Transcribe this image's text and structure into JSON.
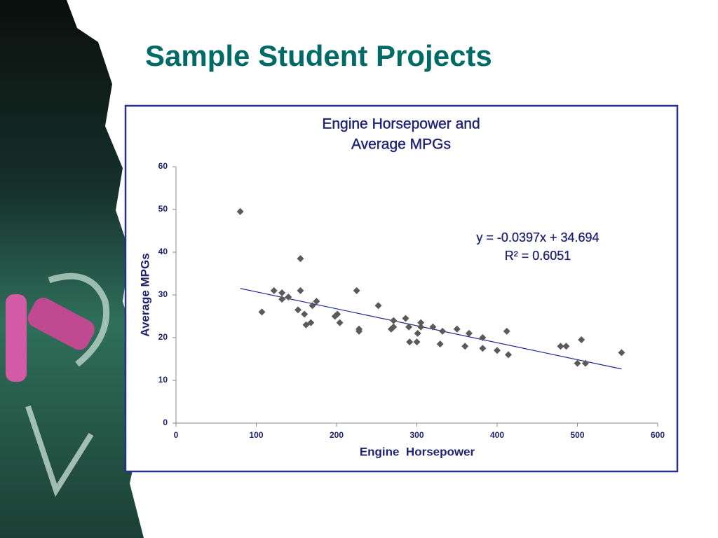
{
  "slide": {
    "title": "Sample Student Projects"
  },
  "chart_data": {
    "type": "scatter",
    "title": [
      "Engine Horsepower and",
      "Average MPGs"
    ],
    "x_label": "Engine  Horsepower",
    "y_label": "Average MPGs",
    "color": "#5a5a5a",
    "xlim": [
      0,
      600
    ],
    "xticks": [
      0,
      100,
      200,
      300,
      400,
      500,
      600
    ],
    "ylim": [
      0,
      60
    ],
    "yticks": [
      0,
      10,
      20,
      30,
      40,
      50,
      60
    ],
    "x": [
      80,
      107,
      122,
      132,
      132,
      140,
      155,
      155,
      152,
      160,
      162,
      168,
      170,
      175,
      198,
      201,
      204,
      225,
      228,
      228,
      252,
      268,
      271,
      271,
      286,
      290,
      291,
      301,
      300,
      305,
      305,
      320,
      329,
      332,
      350,
      360,
      365,
      382,
      382,
      400,
      412,
      414,
      479,
      486,
      500,
      505,
      510,
      555
    ],
    "values": [
      49.5,
      26,
      31,
      30.5,
      29,
      29.5,
      38.5,
      31,
      26.5,
      25.5,
      23,
      23.5,
      27.5,
      28.5,
      25,
      25.5,
      23.5,
      31,
      22,
      21.5,
      27.5,
      22,
      24,
      22.5,
      24.5,
      22.5,
      19,
      21,
      19,
      23.5,
      22.5,
      22.5,
      18.5,
      21.5,
      22,
      18,
      21,
      20,
      17.5,
      17,
      21.5,
      16,
      18,
      18,
      14,
      19.5,
      14,
      16.5
    ],
    "trendline": {
      "color": "#1f2a8c",
      "slope": -0.0397,
      "intercept": 34.694,
      "equation": "y = -0.0397x + 34.694",
      "r_squared": "R² = 0.6051"
    }
  }
}
